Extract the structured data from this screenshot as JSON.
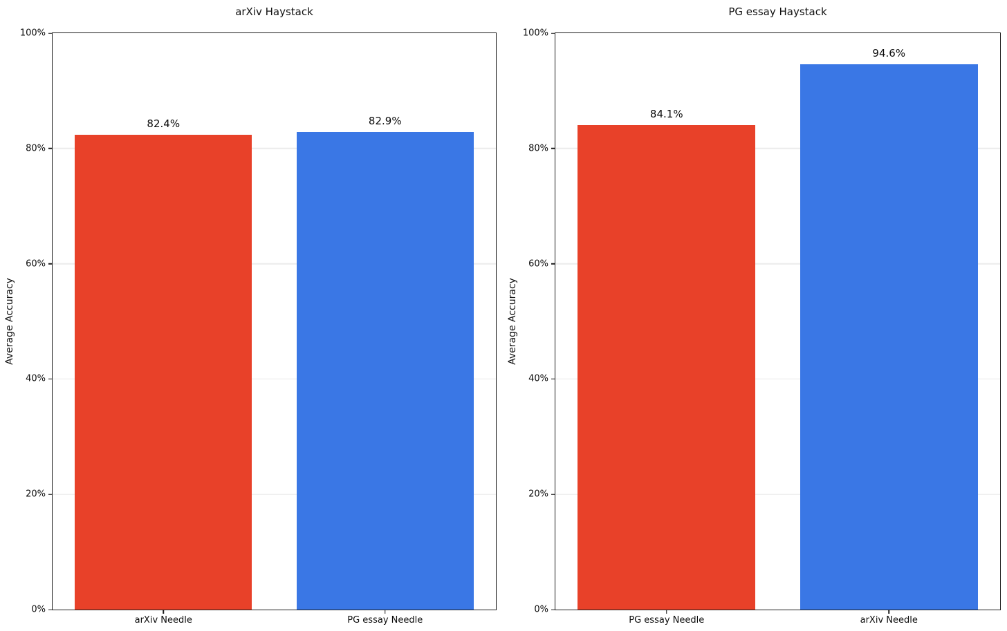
{
  "figure": {
    "background": "#ffffff"
  },
  "style_colors": {
    "spine": "#1a1a1a",
    "grid": "#ebebeb",
    "tick": "#1a1a1a",
    "text": "#111111",
    "red": "#E84129",
    "blue": "#3A77E5"
  },
  "chart_data": [
    {
      "type": "bar",
      "title": "arXiv Haystack",
      "xlabel": "",
      "ylabel": "Average Accuracy",
      "categories": [
        "arXiv Needle",
        "PG essay Needle"
      ],
      "values": [
        82.4,
        82.9
      ],
      "bar_labels": [
        "82.4%",
        "82.9%"
      ],
      "bar_colors": [
        "#E84129",
        "#3A77E5"
      ],
      "ylim": [
        0,
        100
      ],
      "yticks": [
        0,
        20,
        40,
        60,
        80,
        100
      ],
      "ytick_labels": [
        "0%",
        "20%",
        "40%",
        "60%",
        "80%",
        "100%"
      ],
      "grid": "horizontal",
      "legend": "none"
    },
    {
      "type": "bar",
      "title": "PG essay Haystack",
      "xlabel": "",
      "ylabel": "Average Accuracy",
      "categories": [
        "PG essay Needle",
        "arXiv Needle"
      ],
      "values": [
        84.1,
        94.6
      ],
      "bar_labels": [
        "84.1%",
        "94.6%"
      ],
      "bar_colors": [
        "#E84129",
        "#3A77E5"
      ],
      "ylim": [
        0,
        100
      ],
      "yticks": [
        0,
        20,
        40,
        60,
        80,
        100
      ],
      "ytick_labels": [
        "0%",
        "20%",
        "40%",
        "60%",
        "80%",
        "100%"
      ],
      "grid": "horizontal",
      "legend": "none"
    }
  ]
}
